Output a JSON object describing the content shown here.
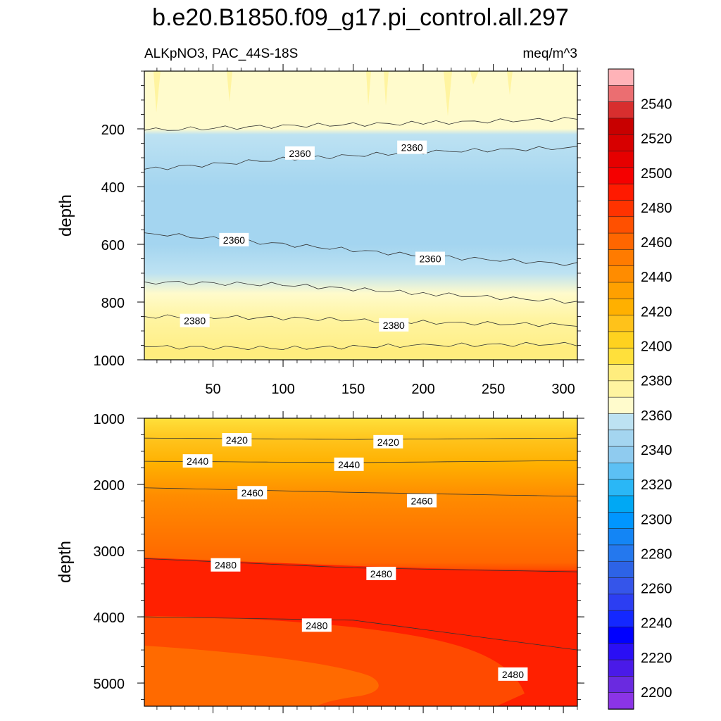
{
  "title": "b.e20.B1850.f09_g17.pi_control.all.297",
  "subtitle_left": "ALKpNO3, PAC_44S-18S",
  "subtitle_right": "meq/m^3",
  "colorbar": {
    "labels": [
      "2540",
      "2520",
      "2500",
      "2480",
      "2460",
      "2440",
      "2420",
      "2400",
      "2380",
      "2360",
      "2340",
      "2320",
      "2300",
      "2280",
      "2260",
      "2240",
      "2220",
      "2200"
    ],
    "colors_top_to_bottom": [
      "#ffb3b8",
      "#eb6e71",
      "#d82e2e",
      "#c80000",
      "#d70000",
      "#e60000",
      "#f50000",
      "#ff1a00",
      "#ff3300",
      "#ff5000",
      "#ff6600",
      "#ff7b00",
      "#ff8c00",
      "#ffa000",
      "#ffb000",
      "#ffc21a",
      "#ffd21f",
      "#ffe03b",
      "#ffed7e",
      "#fff4a0",
      "#fffbcc",
      "#bde2f2",
      "#a4d5f0",
      "#8fcbef",
      "#5cc0f4",
      "#2ab7f6",
      "#00a8f4",
      "#0096ff",
      "#1385f5",
      "#2478ee",
      "#2d63e6",
      "#3555ea",
      "#2c3ef2",
      "#1428ff",
      "#0000ff",
      "#2a0ff5",
      "#4a1ae8",
      "#6a2ae0",
      "#8b34e6"
    ]
  },
  "chart_data": [
    {
      "type": "heatmap",
      "subtype": "filled-contour",
      "xlabel": "",
      "ylabel": "depth",
      "xlim": [
        1,
        310
      ],
      "ylim": [
        1000,
        0
      ],
      "x_ticks": [
        "50",
        "100",
        "150",
        "200",
        "250",
        "300"
      ],
      "y_ticks": [
        "200",
        "400",
        "600",
        "800",
        "1000"
      ],
      "contour_lines": [
        {
          "level": 2370,
          "depth_at_x": [
            [
              1,
              205
            ],
            [
              100,
              190
            ],
            [
              200,
              180
            ],
            [
              310,
              165
            ]
          ]
        },
        {
          "level": 2360,
          "depth_at_x": [
            [
              1,
              340
            ],
            [
              100,
              305
            ],
            [
              200,
              280
            ],
            [
              310,
              265
            ]
          ]
        },
        {
          "level": 2360,
          "depth_at_x": [
            [
              1,
              560
            ],
            [
              100,
              600
            ],
            [
              200,
              640
            ],
            [
              310,
              670
            ]
          ]
        },
        {
          "level": 2370,
          "depth_at_x": [
            [
              1,
              730
            ],
            [
              100,
              740
            ],
            [
              200,
              770
            ],
            [
              310,
              800
            ]
          ]
        },
        {
          "level": 2380,
          "depth_at_x": [
            [
              1,
              850
            ],
            [
              100,
              855
            ],
            [
              200,
              870
            ],
            [
              310,
              880
            ]
          ]
        },
        {
          "level": 2390,
          "depth_at_x": [
            [
              1,
              955
            ],
            [
              100,
              960
            ],
            [
              200,
              950
            ],
            [
              310,
              945
            ]
          ]
        }
      ],
      "contour_labels": [
        {
          "text": "2360",
          "x": 112,
          "depth": 285
        },
        {
          "text": "2360",
          "x": 192,
          "depth": 265
        },
        {
          "text": "2360",
          "x": 65,
          "depth": 585
        },
        {
          "text": "2360",
          "x": 205,
          "depth": 650
        },
        {
          "text": "2380",
          "x": 37,
          "depth": 865
        },
        {
          "text": "2380",
          "x": 179,
          "depth": 880
        }
      ]
    },
    {
      "type": "heatmap",
      "subtype": "filled-contour",
      "xlabel": "",
      "ylabel": "depth",
      "xlim": [
        1,
        310
      ],
      "ylim": [
        5350,
        1000
      ],
      "y_ticks": [
        "1000",
        "2000",
        "3000",
        "4000",
        "5000"
      ],
      "contour_lines": [
        {
          "level": 2420,
          "depth_at_x": [
            [
              1,
              1300
            ],
            [
              150,
              1320
            ],
            [
              310,
              1300
            ]
          ]
        },
        {
          "level": 2440,
          "depth_at_x": [
            [
              1,
              1650
            ],
            [
              150,
              1670
            ],
            [
              310,
              1640
            ]
          ]
        },
        {
          "level": 2460,
          "depth_at_x": [
            [
              1,
              2050
            ],
            [
              150,
              2120
            ],
            [
              310,
              2180
            ]
          ]
        },
        {
          "level": 2480,
          "depth_at_x": [
            [
              1,
              3120
            ],
            [
              150,
              3260
            ],
            [
              310,
              3320
            ]
          ]
        },
        {
          "level": 2480,
          "depth_at_x": [
            [
              1,
              4000
            ],
            [
              150,
              4050
            ],
            [
              310,
              4500
            ]
          ]
        }
      ],
      "contour_labels": [
        {
          "text": "2420",
          "x": 67,
          "depth": 1330
        },
        {
          "text": "2420",
          "x": 175,
          "depth": 1360
        },
        {
          "text": "2440",
          "x": 39,
          "depth": 1650
        },
        {
          "text": "2440",
          "x": 147,
          "depth": 1700
        },
        {
          "text": "2460",
          "x": 78,
          "depth": 2130
        },
        {
          "text": "2460",
          "x": 199,
          "depth": 2250
        },
        {
          "text": "2480",
          "x": 59,
          "depth": 3220
        },
        {
          "text": "2480",
          "x": 170,
          "depth": 3350
        },
        {
          "text": "2480",
          "x": 124,
          "depth": 4130
        },
        {
          "text": "2480",
          "x": 264,
          "depth": 4870
        }
      ]
    }
  ]
}
